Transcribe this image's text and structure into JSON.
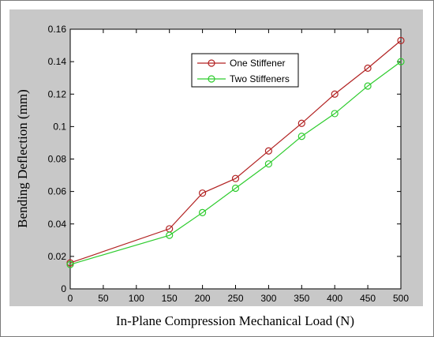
{
  "chart_data": {
    "type": "line",
    "title": "",
    "xlabel": "In-Plane Compression Mechanical Load (N)",
    "ylabel": "Bending Deflection (mm)",
    "xlim": [
      0,
      500
    ],
    "ylim": [
      0,
      0.16
    ],
    "xticks": [
      "0",
      "50",
      "100",
      "150",
      "200",
      "250",
      "300",
      "350",
      "400",
      "450",
      "500"
    ],
    "yticks": [
      "0",
      "0.02",
      "0.04",
      "0.06",
      "0.08",
      "0.1",
      "0.12",
      "0.14",
      "0.16"
    ],
    "grid": false,
    "legend_position": "top-right",
    "x": [
      0,
      150,
      200,
      250,
      300,
      350,
      400,
      450,
      500
    ],
    "series": [
      {
        "name": "One Stiffener",
        "color": "#b22222",
        "marker": "circle",
        "values": [
          0.016,
          0.037,
          0.059,
          0.068,
          0.085,
          0.102,
          0.12,
          0.136,
          0.153
        ]
      },
      {
        "name": "Two Stiffeners",
        "color": "#2ecc2e",
        "marker": "circle",
        "values": [
          0.015,
          0.033,
          0.047,
          0.062,
          0.077,
          0.094,
          0.108,
          0.125,
          0.14
        ]
      }
    ]
  }
}
